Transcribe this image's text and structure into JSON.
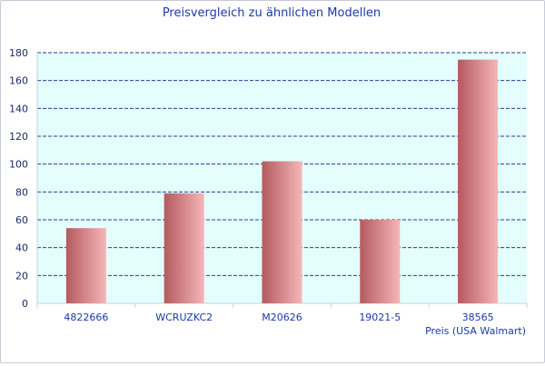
{
  "chart_data": {
    "type": "bar",
    "title": "Preisvergleich zu ähnlichen Modellen",
    "xlabel": "Preis (USA Walmart)",
    "ylabel": "",
    "categories": [
      "4822666",
      "WCRUZKC2",
      "M20626",
      "19021-5",
      "38565"
    ],
    "values": [
      54,
      79,
      102,
      60,
      175
    ],
    "ylim": [
      0,
      180
    ],
    "yticks": [
      0,
      20,
      40,
      60,
      80,
      100,
      120,
      140,
      160,
      180
    ],
    "grid": true,
    "legend": "none",
    "colors": {
      "plot_background": "#e4fdfd",
      "grid_line": "#2a3f8f",
      "bar_dark": "#b45a5e",
      "bar_light": "#f6b6b8",
      "axis_line": "#c9d3de",
      "text": "#1a3aa8"
    }
  }
}
